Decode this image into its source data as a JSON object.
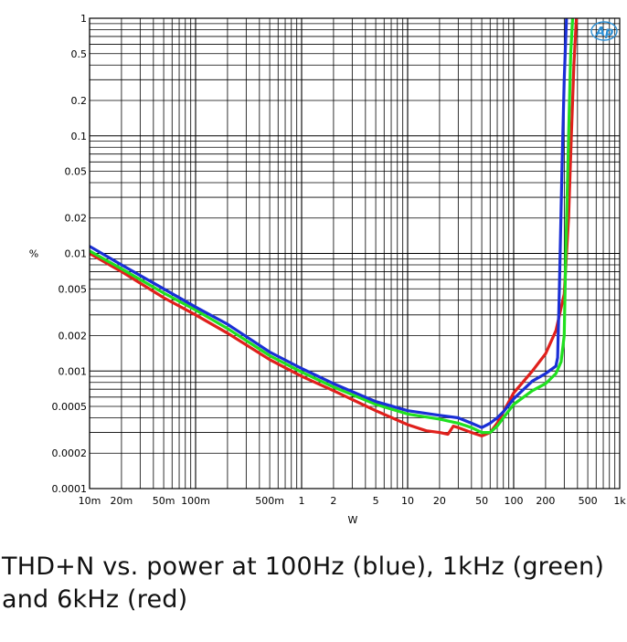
{
  "caption": "THD+N vs. power at 100Hz (blue), 1kHz (green) and 6kHz (red)",
  "logo": "Ap",
  "chart_data": {
    "type": "line",
    "xlabel": "W",
    "ylabel": "%",
    "xscale": "log",
    "yscale": "log",
    "xlim": [
      0.01,
      1000
    ],
    "ylim": [
      0.0001,
      1
    ],
    "grid": true,
    "x_ticks": [
      {
        "v": 0.01,
        "label": "10m"
      },
      {
        "v": 0.02,
        "label": "20m"
      },
      {
        "v": 0.05,
        "label": "50m"
      },
      {
        "v": 0.1,
        "label": "100m"
      },
      {
        "v": 0.5,
        "label": "500m"
      },
      {
        "v": 1,
        "label": "1"
      },
      {
        "v": 2,
        "label": "2"
      },
      {
        "v": 5,
        "label": "5"
      },
      {
        "v": 10,
        "label": "10"
      },
      {
        "v": 20,
        "label": "20"
      },
      {
        "v": 50,
        "label": "50"
      },
      {
        "v": 100,
        "label": "100"
      },
      {
        "v": 200,
        "label": "200"
      },
      {
        "v": 500,
        "label": "500"
      },
      {
        "v": 1000,
        "label": "1k"
      }
    ],
    "y_ticks": [
      {
        "v": 1,
        "label": "1"
      },
      {
        "v": 0.5,
        "label": "0.5"
      },
      {
        "v": 0.2,
        "label": "0.2"
      },
      {
        "v": 0.1,
        "label": "0.1"
      },
      {
        "v": 0.05,
        "label": "0.05"
      },
      {
        "v": 0.02,
        "label": "0.02"
      },
      {
        "v": 0.01,
        "label": "0.01"
      },
      {
        "v": 0.005,
        "label": "0.005"
      },
      {
        "v": 0.002,
        "label": "0.002"
      },
      {
        "v": 0.001,
        "label": "0.001"
      },
      {
        "v": 0.0005,
        "label": "0.0005"
      },
      {
        "v": 0.0002,
        "label": "0.0002"
      },
      {
        "v": 0.0001,
        "label": "0.0001"
      }
    ],
    "series": [
      {
        "color": "#e0201c",
        "points": [
          [
            0.01,
            0.01
          ],
          [
            0.02,
            0.007
          ],
          [
            0.05,
            0.0042
          ],
          [
            0.1,
            0.003
          ],
          [
            0.2,
            0.0021
          ],
          [
            0.5,
            0.00125
          ],
          [
            1,
            0.0009
          ],
          [
            2,
            0.00068
          ],
          [
            5,
            0.00046
          ],
          [
            10,
            0.00035
          ],
          [
            15,
            0.00031
          ],
          [
            20,
            0.0003
          ],
          [
            24,
            0.00029
          ],
          [
            27,
            0.00034
          ],
          [
            30,
            0.00033
          ],
          [
            40,
            0.0003
          ],
          [
            50,
            0.00028
          ],
          [
            60,
            0.0003
          ],
          [
            70,
            0.00036
          ],
          [
            80,
            0.00045
          ],
          [
            100,
            0.00065
          ],
          [
            150,
            0.001
          ],
          [
            200,
            0.0014
          ],
          [
            250,
            0.0022
          ],
          [
            300,
            0.0045
          ],
          [
            330,
            0.02
          ],
          [
            350,
            0.1
          ],
          [
            370,
            0.4
          ],
          [
            390,
            1.0
          ]
        ]
      },
      {
        "color": "#20e020",
        "points": [
          [
            0.01,
            0.0105
          ],
          [
            0.02,
            0.0074
          ],
          [
            0.05,
            0.0046
          ],
          [
            0.1,
            0.0033
          ],
          [
            0.2,
            0.0023
          ],
          [
            0.5,
            0.00135
          ],
          [
            1,
            0.00098
          ],
          [
            2,
            0.00073
          ],
          [
            5,
            0.00052
          ],
          [
            10,
            0.00043
          ],
          [
            20,
            0.00039
          ],
          [
            30,
            0.00036
          ],
          [
            40,
            0.00033
          ],
          [
            50,
            0.0003
          ],
          [
            60,
            0.0003
          ],
          [
            70,
            0.00034
          ],
          [
            80,
            0.0004
          ],
          [
            100,
            0.00052
          ],
          [
            150,
            0.00068
          ],
          [
            200,
            0.00078
          ],
          [
            250,
            0.00095
          ],
          [
            280,
            0.0012
          ],
          [
            300,
            0.002
          ],
          [
            310,
            0.01
          ],
          [
            330,
            0.1
          ],
          [
            345,
            0.5
          ],
          [
            360,
            1.0
          ]
        ]
      },
      {
        "color": "#1a2fd6",
        "points": [
          [
            0.01,
            0.0115
          ],
          [
            0.02,
            0.008
          ],
          [
            0.05,
            0.005
          ],
          [
            0.1,
            0.0035
          ],
          [
            0.2,
            0.0025
          ],
          [
            0.5,
            0.00145
          ],
          [
            1,
            0.00105
          ],
          [
            2,
            0.00078
          ],
          [
            5,
            0.00055
          ],
          [
            10,
            0.00046
          ],
          [
            20,
            0.00042
          ],
          [
            30,
            0.0004
          ],
          [
            40,
            0.00036
          ],
          [
            50,
            0.00033
          ],
          [
            60,
            0.00036
          ],
          [
            70,
            0.0004
          ],
          [
            80,
            0.00045
          ],
          [
            100,
            0.00058
          ],
          [
            150,
            0.00082
          ],
          [
            200,
            0.00095
          ],
          [
            250,
            0.0011
          ],
          [
            260,
            0.0013
          ],
          [
            270,
            0.005
          ],
          [
            285,
            0.05
          ],
          [
            300,
            0.3
          ],
          [
            315,
            1.0
          ]
        ]
      }
    ]
  }
}
